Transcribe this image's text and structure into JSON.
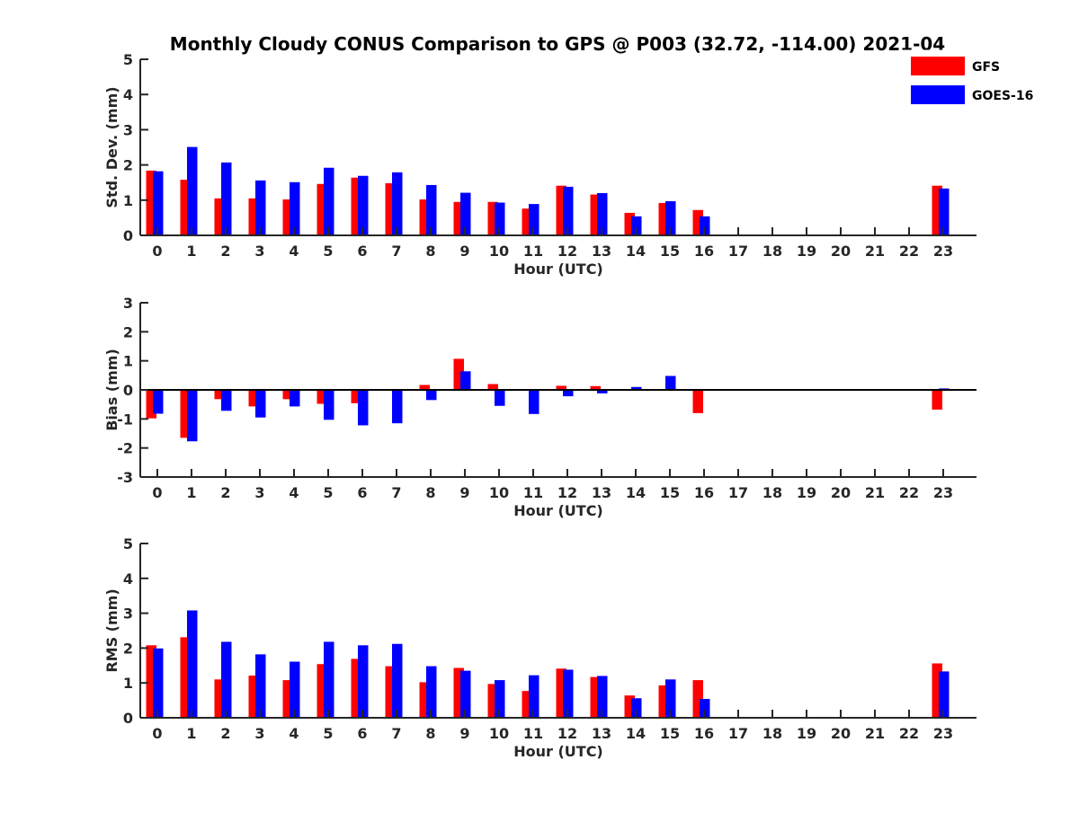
{
  "chart_data": {
    "title": "Monthly Cloudy CONUS Comparison to GPS @ P003 (32.72, -114.00) 2021-04",
    "legend": {
      "placement": "top-right",
      "entries": [
        {
          "name": "GFS",
          "color": "#ff0000"
        },
        {
          "name": "GOES-16",
          "color": "#0000ff"
        }
      ]
    },
    "panels": [
      {
        "type": "bar",
        "xlabel": "Hour (UTC)",
        "ylabel": "Std. Dev. (mm)",
        "ylim": [
          0,
          5
        ],
        "yticks": [
          "0",
          "1",
          "2",
          "3",
          "4",
          "5"
        ],
        "categories": [
          "0",
          "1",
          "2",
          "3",
          "4",
          "5",
          "6",
          "7",
          "8",
          "9",
          "10",
          "11",
          "12",
          "13",
          "14",
          "15",
          "16",
          "17",
          "18",
          "19",
          "20",
          "21",
          "22",
          "23"
        ],
        "series": [
          {
            "name": "GFS",
            "color": "#ff0000",
            "values": [
              1.84,
              1.58,
              1.05,
              1.05,
              1.02,
              1.46,
              1.64,
              1.48,
              1.02,
              0.95,
              0.95,
              0.76,
              1.41,
              1.16,
              0.64,
              0.92,
              0.72,
              null,
              null,
              null,
              null,
              null,
              null,
              1.41
            ]
          },
          {
            "name": "GOES-16",
            "color": "#0000ff",
            "values": [
              1.82,
              2.51,
              2.07,
              1.56,
              1.51,
              1.92,
              1.69,
              1.79,
              1.43,
              1.21,
              0.93,
              0.89,
              1.38,
              1.2,
              0.54,
              0.97,
              0.54,
              null,
              null,
              null,
              null,
              null,
              null,
              1.33
            ]
          }
        ]
      },
      {
        "type": "bar",
        "xlabel": "Hour (UTC)",
        "ylabel": "Bias (mm)",
        "ylim": [
          -3,
          3
        ],
        "yticks": [
          "-3",
          "-2",
          "-1",
          "0",
          "1",
          "2",
          "3"
        ],
        "categories": [
          "0",
          "1",
          "2",
          "3",
          "4",
          "5",
          "6",
          "7",
          "8",
          "9",
          "10",
          "11",
          "12",
          "13",
          "14",
          "15",
          "16",
          "17",
          "18",
          "19",
          "20",
          "21",
          "22",
          "23"
        ],
        "series": [
          {
            "name": "GFS",
            "color": "#ff0000",
            "values": [
              -0.98,
              -1.65,
              -0.32,
              -0.57,
              -0.32,
              -0.48,
              -0.46,
              0.0,
              0.17,
              1.07,
              0.2,
              0.0,
              0.14,
              0.13,
              0.0,
              -0.02,
              -0.8,
              null,
              null,
              null,
              null,
              null,
              null,
              -0.68
            ]
          },
          {
            "name": "GOES-16",
            "color": "#0000ff",
            "values": [
              -0.82,
              -1.77,
              -0.72,
              -0.95,
              -0.57,
              -1.03,
              -1.22,
              -1.15,
              -0.35,
              0.64,
              -0.55,
              -0.83,
              -0.22,
              -0.12,
              0.1,
              0.48,
              -0.03,
              null,
              null,
              null,
              null,
              null,
              null,
              0.05
            ]
          }
        ]
      },
      {
        "type": "bar",
        "xlabel": "Hour (UTC)",
        "ylabel": "RMS (mm)",
        "ylim": [
          0,
          5
        ],
        "yticks": [
          "0",
          "1",
          "2",
          "3",
          "4",
          "5"
        ],
        "categories": [
          "0",
          "1",
          "2",
          "3",
          "4",
          "5",
          "6",
          "7",
          "8",
          "9",
          "10",
          "11",
          "12",
          "13",
          "14",
          "15",
          "16",
          "17",
          "18",
          "19",
          "20",
          "21",
          "22",
          "23"
        ],
        "series": [
          {
            "name": "GFS",
            "color": "#ff0000",
            "values": [
              2.08,
              2.31,
              1.1,
              1.21,
              1.08,
              1.54,
              1.69,
              1.48,
              1.02,
              1.43,
              0.97,
              0.77,
              1.41,
              1.17,
              0.64,
              0.93,
              1.08,
              null,
              null,
              null,
              null,
              null,
              null,
              1.56
            ]
          },
          {
            "name": "GOES-16",
            "color": "#0000ff",
            "values": [
              1.99,
              3.08,
              2.18,
              1.82,
              1.61,
              2.18,
              2.08,
              2.12,
              1.48,
              1.35,
              1.08,
              1.22,
              1.38,
              1.2,
              0.56,
              1.1,
              0.54,
              null,
              null,
              null,
              null,
              null,
              null,
              1.33
            ]
          }
        ]
      }
    ]
  }
}
